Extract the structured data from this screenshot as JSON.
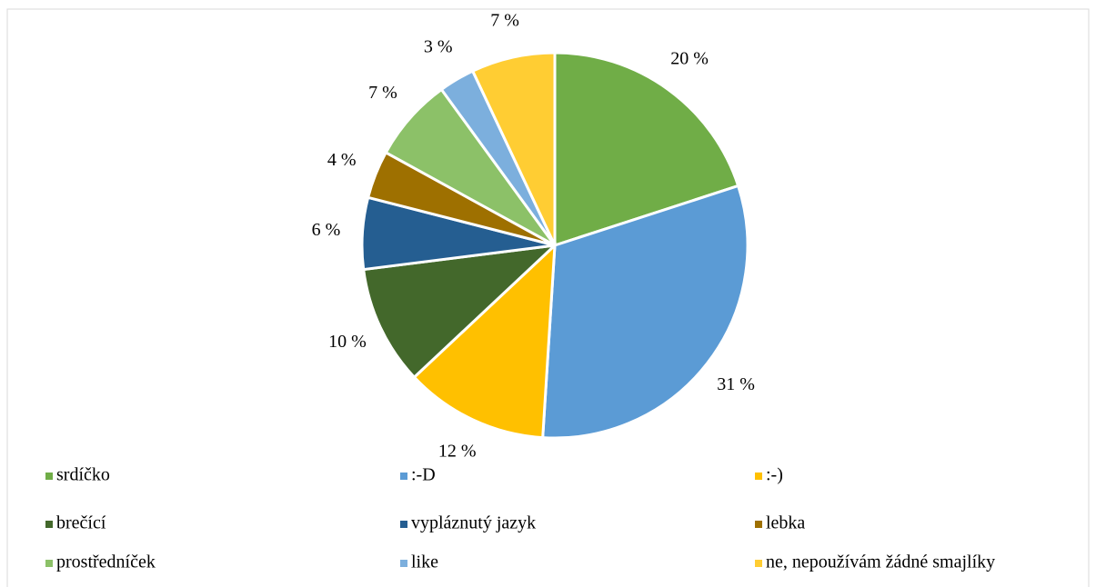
{
  "chart_data": {
    "type": "pie",
    "categories": [
      "srdíčko",
      ":-D",
      ":-)",
      "brečící",
      "vypláznutý jazyk",
      "lebka",
      "prostředníček",
      "like",
      "ne, nepoužívám žádné smajlíky"
    ],
    "values": [
      20,
      31,
      12,
      10,
      6,
      4,
      7,
      3,
      7
    ],
    "value_labels": [
      "20 %",
      "31 %",
      "12 %",
      "10 %",
      "6 %",
      "4 %",
      "7 %",
      "3 %",
      "7 %"
    ],
    "colors": [
      "#70ad47",
      "#5b9bd5",
      "#ffc000",
      "#43682b",
      "#255e91",
      "#9e7000",
      "#8cc168",
      "#7cafdd",
      "#ffcd33"
    ],
    "legend": "bottom"
  }
}
